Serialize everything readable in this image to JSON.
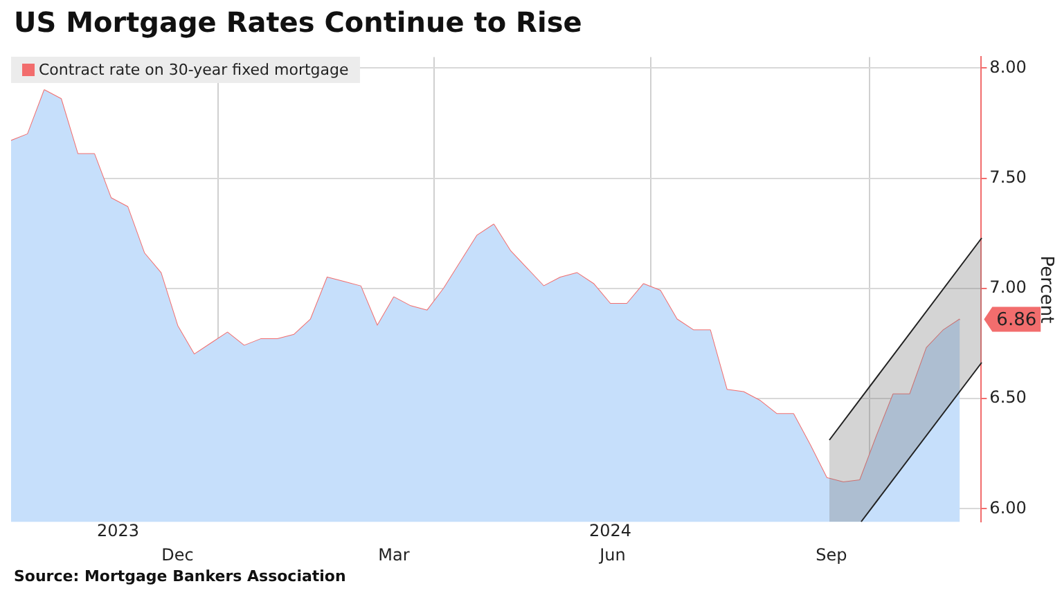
{
  "chart_data": {
    "type": "area",
    "title": "US Mortgage Rates Continue to Rise",
    "x": [
      "2023-10-06",
      "2023-10-13",
      "2023-10-20",
      "2023-10-27",
      "2023-11-03",
      "2023-11-10",
      "2023-11-17",
      "2023-11-24",
      "2023-12-01",
      "2023-12-08",
      "2023-12-15",
      "2023-12-22",
      "2023-12-29",
      "2024-01-05",
      "2024-01-12",
      "2024-01-19",
      "2024-01-26",
      "2024-02-02",
      "2024-02-09",
      "2024-02-16",
      "2024-02-23",
      "2024-03-01",
      "2024-03-08",
      "2024-03-15",
      "2024-03-22",
      "2024-03-29",
      "2024-04-05",
      "2024-04-12",
      "2024-04-19",
      "2024-04-26",
      "2024-05-03",
      "2024-05-10",
      "2024-05-17",
      "2024-05-24",
      "2024-05-31",
      "2024-06-07",
      "2024-06-14",
      "2024-06-21",
      "2024-06-28",
      "2024-07-05",
      "2024-07-12",
      "2024-07-19",
      "2024-07-26",
      "2024-08-02",
      "2024-08-09",
      "2024-08-16",
      "2024-08-23",
      "2024-08-30",
      "2024-09-06",
      "2024-09-13",
      "2024-09-20",
      "2024-09-27",
      "2024-10-04",
      "2024-10-11",
      "2024-10-18",
      "2024-10-25",
      "2024-11-01",
      "2024-11-08"
    ],
    "series": [
      {
        "color": "#c6dffb",
        "values": [
          7.67,
          7.7,
          7.9,
          7.86,
          7.61,
          7.61,
          7.41,
          7.37,
          7.16,
          7.07,
          6.83,
          6.7,
          6.75,
          6.8,
          6.74,
          6.77,
          6.77,
          6.79,
          6.86,
          7.05,
          7.03,
          7.01,
          6.83,
          6.96,
          6.92,
          6.9,
          7.0,
          7.12,
          7.24,
          7.29,
          7.17,
          7.09,
          7.01,
          7.05,
          7.07,
          7.02,
          6.93,
          6.93,
          7.02,
          6.99,
          6.86,
          6.81,
          6.81,
          6.54,
          6.53,
          6.49,
          6.43,
          6.43,
          6.29,
          6.14,
          6.12,
          6.13,
          6.33,
          6.52,
          6.52,
          6.73,
          6.81,
          6.86
        ]
      },
      {
        "type": "line",
        "name": "Contract rate on 30-year fixed mortgage",
        "color": "#f26d6d",
        "values": [
          7.67,
          7.7,
          7.9,
          7.86,
          7.61,
          7.61,
          7.41,
          7.37,
          7.16,
          7.07,
          6.83,
          6.7,
          6.75,
          6.8,
          6.74,
          6.77,
          6.77,
          6.79,
          6.86,
          7.05,
          7.03,
          7.01,
          6.83,
          6.96,
          6.92,
          6.9,
          7.0,
          7.12,
          7.24,
          7.29,
          7.17,
          7.09,
          7.01,
          7.05,
          7.07,
          7.02,
          6.93,
          6.93,
          7.02,
          6.99,
          6.86,
          6.81,
          6.81,
          6.54,
          6.53,
          6.49,
          6.43,
          6.43,
          6.29,
          6.14,
          6.12,
          6.13,
          6.33,
          6.52,
          6.52,
          6.73,
          6.81,
          6.86
        ]
      }
    ],
    "xlim": [
      "2023-10-06",
      "2024-11-17"
    ],
    "xticks": [
      {
        "value": "2023-12-15",
        "label": "Dec"
      },
      {
        "value": "2024-01-01",
        "label": null
      },
      {
        "value": "2024-03-15",
        "label": "Mar"
      },
      {
        "value": "2024-04-01",
        "label": null
      },
      {
        "value": "2024-06-15",
        "label": "Jun"
      },
      {
        "value": "2024-07-01",
        "label": null
      },
      {
        "value": "2024-09-15",
        "label": "Sep"
      },
      {
        "value": "2024-10-01",
        "label": null
      }
    ],
    "x2lim": [
      "2023-10-06",
      "2024-11-17"
    ],
    "x2ticks": [
      {
        "value": "2023-11-20",
        "label": "2023"
      },
      {
        "value": "2024-06-14",
        "label": "2024"
      }
    ],
    "ylabel": "Percent",
    "ylim": [
      5.94,
      8.05
    ],
    "yticks": [
      {
        "value": 6,
        "label": "6.00"
      },
      {
        "value": 6.5,
        "label": "6.50"
      },
      {
        "value": 7,
        "label": "7.00"
      },
      {
        "value": 7.5,
        "label": "7.50"
      },
      {
        "value": 8,
        "label": "8.00"
      }
    ],
    "grid": true,
    "legend": "top left",
    "marker": "none",
    "annotations": [
      {
        "text": "6.86",
        "x": "2024-11-08",
        "y": 6.86
      },
      "Source: Mortgage Bankers Association"
    ]
  }
}
